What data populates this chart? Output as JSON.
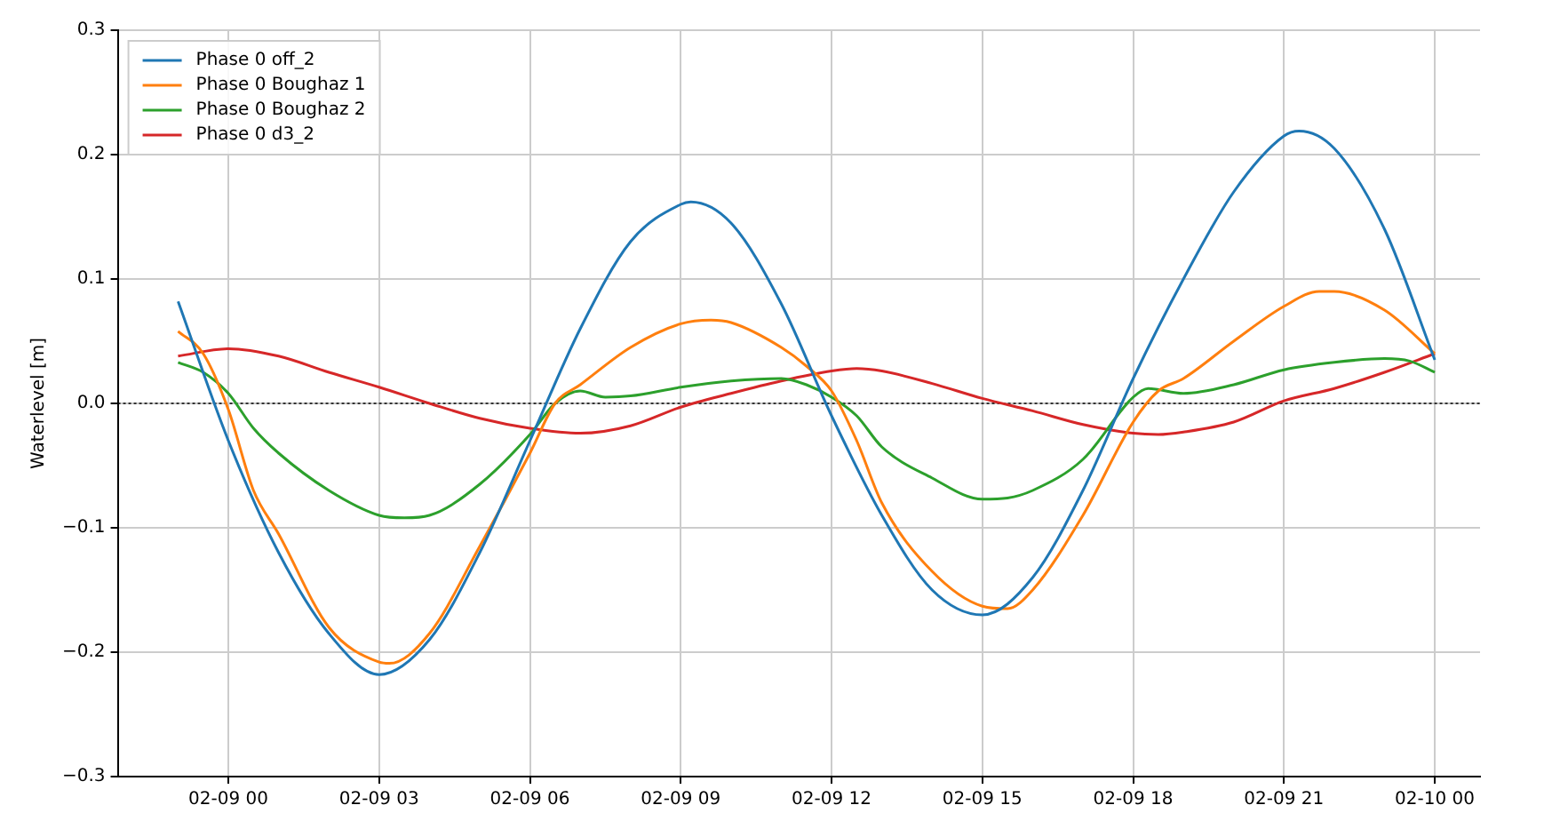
{
  "chart_data": {
    "type": "line",
    "ylabel": "Waterlevel [m]",
    "xlim": [
      "--02-08T21:48",
      "--02-10T00:54"
    ],
    "ylim": [
      -0.3,
      0.3
    ],
    "xticks": [
      {
        "value": "--02-09T00:00",
        "label": "02-09 00"
      },
      {
        "value": "--02-09T03:00",
        "label": "02-09 03"
      },
      {
        "value": "--02-09T06:00",
        "label": "02-09 06"
      },
      {
        "value": "--02-09T09:00",
        "label": "02-09 09"
      },
      {
        "value": "--02-09T12:00",
        "label": "02-09 12"
      },
      {
        "value": "--02-09T15:00",
        "label": "02-09 15"
      },
      {
        "value": "--02-09T18:00",
        "label": "02-09 18"
      },
      {
        "value": "--02-09T21:00",
        "label": "02-09 21"
      },
      {
        "value": "--02-10T00:00",
        "label": "02-10 00"
      }
    ],
    "yticks": [
      {
        "value": -0.3,
        "label": "−0.3"
      },
      {
        "value": -0.2,
        "label": "−0.2"
      },
      {
        "value": -0.1,
        "label": "−0.1"
      },
      {
        "value": 0,
        "label": "0.0"
      },
      0.1,
      0.2,
      0.3
    ],
    "grid": true,
    "legend": "top left",
    "line_style": "solid",
    "marker": "none",
    "ref_lines": [
      {
        "axis": "y",
        "value": 0,
        "color": "#000000",
        "line_style": "dotted"
      }
    ],
    "series": [
      {
        "name": "Phase 0 off_2",
        "color": "#1f77b4",
        "x": [
          "--02-08T23:00",
          "--02-09T00:00",
          "--02-09T01:00",
          "--02-09T02:00",
          "--02-09T03:00",
          "--02-09T04:00",
          "--02-09T05:00",
          "--02-09T06:00",
          "--02-09T07:00",
          "--02-09T08:00",
          "--02-09T09:00",
          "--02-09T09:12",
          "--02-09T10:00",
          "--02-09T11:00",
          "--02-09T12:00",
          "--02-09T13:00",
          "--02-09T14:00",
          "--02-09T15:00",
          "--02-09T16:00",
          "--02-09T17:00",
          "--02-09T18:00",
          "--02-09T19:00",
          "--02-09T20:00",
          "--02-09T21:00",
          "--02-09T21:18",
          "--02-09T22:00",
          "--02-09T23:00",
          "--02-10T00:00"
        ],
        "values": [
          0.082,
          -0.03,
          -0.12,
          -0.185,
          -0.218,
          -0.19,
          -0.12,
          -0.03,
          0.06,
          0.13,
          0.16,
          0.162,
          0.145,
          0.08,
          -0.01,
          -0.09,
          -0.15,
          -0.17,
          -0.14,
          -0.07,
          0.02,
          0.1,
          0.17,
          0.215,
          0.219,
          0.205,
          0.14,
          0.035
        ]
      },
      {
        "name": "Phase 0 Boughaz 1",
        "color": "#ff7f0e",
        "x": [
          "--02-08T23:00",
          "--02-08T23:30",
          "--02-09T00:00",
          "--02-09T00:30",
          "--02-09T01:00",
          "--02-09T02:00",
          "--02-09T03:00",
          "--02-09T03:12",
          "--02-09T04:00",
          "--02-09T05:00",
          "--02-09T06:00",
          "--02-09T06:30",
          "--02-09T07:00",
          "--02-09T08:00",
          "--02-09T09:00",
          "--02-09T09:36",
          "--02-09T10:00",
          "--02-09T11:00",
          "--02-09T11:30",
          "--02-09T12:00",
          "--02-09T12:30",
          "--02-09T13:00",
          "--02-09T14:00",
          "--02-09T15:00",
          "--02-09T15:30",
          "--02-09T16:00",
          "--02-09T17:00",
          "--02-09T18:00",
          "--02-09T18:30",
          "--02-09T19:00",
          "--02-09T20:00",
          "--02-09T21:00",
          "--02-09T21:42",
          "--02-09T22:00",
          "--02-09T23:00",
          "--02-10T00:00"
        ],
        "values": [
          0.058,
          0.04,
          -0.005,
          -0.07,
          -0.105,
          -0.18,
          -0.208,
          -0.209,
          -0.185,
          -0.115,
          -0.04,
          0.0,
          0.015,
          0.045,
          0.064,
          0.067,
          0.065,
          0.045,
          0.03,
          0.01,
          -0.03,
          -0.08,
          -0.135,
          -0.163,
          -0.165,
          -0.15,
          -0.09,
          -0.015,
          0.01,
          0.02,
          0.05,
          0.078,
          0.09,
          0.09,
          0.075,
          0.04
        ]
      },
      {
        "name": "Phase 0 Boughaz 2",
        "color": "#2ca02c",
        "x": [
          "--02-08T23:00",
          "--02-08T23:30",
          "--02-09T00:00",
          "--02-09T00:30",
          "--02-09T01:00",
          "--02-09T02:00",
          "--02-09T03:00",
          "--02-09T03:30",
          "--02-09T04:00",
          "--02-09T05:00",
          "--02-09T06:00",
          "--02-09T06:30",
          "--02-09T07:00",
          "--02-09T07:30",
          "--02-09T08:00",
          "--02-09T09:00",
          "--02-09T10:00",
          "--02-09T11:00",
          "--02-09T11:30",
          "--02-09T12:00",
          "--02-09T12:30",
          "--02-09T13:00",
          "--02-09T14:00",
          "--02-09T15:00",
          "--02-09T15:30",
          "--02-09T16:00",
          "--02-09T17:00",
          "--02-09T18:00",
          "--02-09T18:18",
          "--02-09T19:00",
          "--02-09T20:00",
          "--02-09T21:00",
          "--02-09T22:00",
          "--02-09T23:00",
          "--02-09T23:30",
          "--02-10T00:00"
        ],
        "values": [
          0.033,
          0.025,
          0.008,
          -0.02,
          -0.04,
          -0.07,
          -0.09,
          -0.092,
          -0.09,
          -0.065,
          -0.025,
          0.0,
          0.01,
          0.005,
          0.006,
          0.013,
          0.018,
          0.02,
          0.015,
          0.005,
          -0.01,
          -0.035,
          -0.06,
          -0.077,
          -0.076,
          -0.07,
          -0.045,
          0.005,
          0.012,
          0.008,
          0.015,
          0.027,
          0.033,
          0.036,
          0.034,
          0.025
        ]
      },
      {
        "name": "Phase 0 d3_2",
        "color": "#d62728",
        "x": [
          "--02-08T23:00",
          "--02-09T00:00",
          "--02-09T01:00",
          "--02-09T02:00",
          "--02-09T03:00",
          "--02-09T04:00",
          "--02-09T05:00",
          "--02-09T06:00",
          "--02-09T07:00",
          "--02-09T08:00",
          "--02-09T09:00",
          "--02-09T10:00",
          "--02-09T11:00",
          "--02-09T12:00",
          "--02-09T12:30",
          "--02-09T13:00",
          "--02-09T14:00",
          "--02-09T15:00",
          "--02-09T16:00",
          "--02-09T17:00",
          "--02-09T18:00",
          "--02-09T18:30",
          "--02-09T19:00",
          "--02-09T20:00",
          "--02-09T21:00",
          "--02-09T22:00",
          "--02-09T23:00",
          "--02-10T00:00"
        ],
        "values": [
          0.038,
          0.044,
          0.038,
          0.025,
          0.013,
          0.0,
          -0.012,
          -0.02,
          -0.024,
          -0.018,
          -0.003,
          0.008,
          0.018,
          0.026,
          0.028,
          0.026,
          0.016,
          0.004,
          -0.006,
          -0.017,
          -0.024,
          -0.025,
          -0.023,
          -0.015,
          0.002,
          0.012,
          0.025,
          0.04
        ]
      }
    ]
  }
}
